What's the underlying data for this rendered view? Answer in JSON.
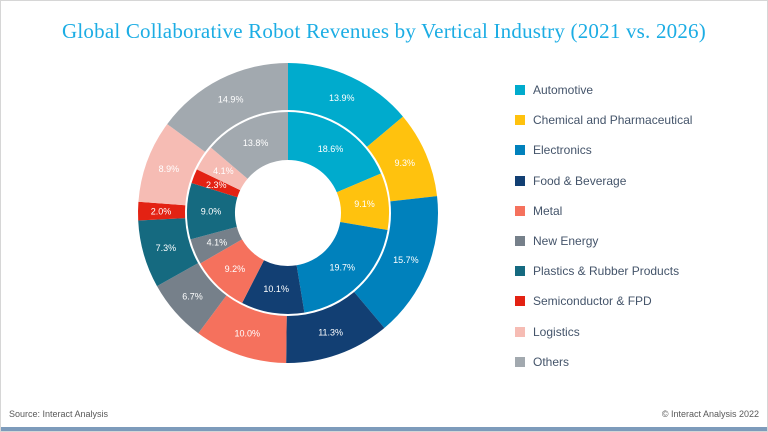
{
  "title": "Global Collaborative Robot Revenues by Vertical Industry (2021 vs. 2026)",
  "footer": {
    "source": "Source: Interact Analysis",
    "copyright": "© Interact Analysis 2022"
  },
  "colors": {
    "title_text": "#1CADE4",
    "legend_text": "#44546A",
    "footer_text": "#595959",
    "bottom_bar": "#7D9BBB"
  },
  "chart_data": {
    "type": "pie",
    "subtype": "double_ring_donut",
    "title": "Global Collaborative Robot Revenues by Vertical Industry (2021 vs. 2026)",
    "categories": [
      "Automotive",
      "Chemical and Pharmaceutical",
      "Electronics",
      "Food & Beverage",
      "Metal",
      "New Energy",
      "Plastics & Rubber Products",
      "Semiconductor & FPD",
      "Logistics",
      "Others"
    ],
    "category_colors": [
      "#00ABCD",
      "#FFC20E",
      "#0081BC",
      "#123F73",
      "#F5715D",
      "#76808A",
      "#156A80",
      "#E32213",
      "#F6BCB4",
      "#A2A9AF"
    ],
    "series": [
      {
        "name": "2021",
        "ring": "inner",
        "values": [
          18.6,
          9.1,
          19.7,
          10.1,
          9.2,
          4.1,
          9.0,
          2.3,
          4.1,
          13.8
        ]
      },
      {
        "name": "2026",
        "ring": "outer",
        "values": [
          13.9,
          9.3,
          15.7,
          11.3,
          10.0,
          6.7,
          7.3,
          2.0,
          8.9,
          14.9
        ]
      }
    ],
    "value_label_format": "0.0%",
    "start_angle": "top",
    "direction": "clockwise",
    "legend_position": "right"
  }
}
